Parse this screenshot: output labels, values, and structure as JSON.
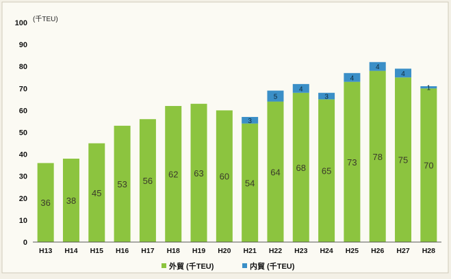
{
  "chart_data": {
    "type": "bar",
    "stacked": true,
    "y_unit_label": "(千TEU)",
    "categories": [
      "H13",
      "H14",
      "H15",
      "H16",
      "H17",
      "H18",
      "H19",
      "H20",
      "H21",
      "H22",
      "H23",
      "H24",
      "H25",
      "H26",
      "H27",
      "H28"
    ],
    "series": [
      {
        "name": "外貿 (千TEU)",
        "color": "#8cc43f",
        "values": [
          36,
          38,
          45,
          53,
          56,
          62,
          63,
          60,
          54,
          64,
          68,
          65,
          73,
          78,
          75,
          70
        ]
      },
      {
        "name": "内貿 (千TEU)",
        "color": "#3b8fc7",
        "values": [
          0,
          0,
          0,
          0,
          0,
          0,
          0,
          0,
          3,
          5,
          4,
          3,
          4,
          4,
          4,
          1
        ]
      }
    ],
    "ylim": [
      0,
      100
    ],
    "yticks": [
      0,
      10,
      20,
      30,
      40,
      50,
      60,
      70,
      80,
      90,
      100
    ],
    "grid": false,
    "legend_position": "bottom"
  }
}
